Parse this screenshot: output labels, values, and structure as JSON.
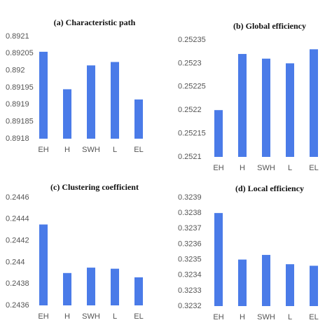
{
  "chart_data": [
    {
      "type": "bar",
      "title": "(a) Characteristic path",
      "categories": [
        "EH",
        "H",
        "SWH",
        "L",
        "EL"
      ],
      "values": [
        0.892055,
        0.891945,
        0.892015,
        0.892025,
        0.891915
      ],
      "color": "#4a7be8",
      "ylim": [
        0.8918,
        0.8921
      ],
      "yticks": [
        0.8918,
        0.89185,
        0.8919,
        0.89195,
        0.892,
        0.89205,
        0.8921
      ]
    },
    {
      "type": "bar",
      "title": "(b) Global efficiency",
      "categories": [
        "EH",
        "H",
        "SWH",
        "L",
        "EL"
      ],
      "values": [
        0.2522,
        0.25232,
        0.25231,
        0.2523,
        0.25233
      ],
      "color": "#4a7be8",
      "ylim": [
        0.2521,
        0.25235
      ],
      "yticks": [
        0.2521,
        0.25215,
        0.2522,
        0.25225,
        0.2523,
        0.25235
      ]
    },
    {
      "type": "bar",
      "title": "(c) Clustering coefficient",
      "categories": [
        "EH",
        "H",
        "SWH",
        "L",
        "EL"
      ],
      "values": [
        0.24435,
        0.2439,
        0.24395,
        0.24394,
        0.24386
      ],
      "color": "#4a7be8",
      "ylim": [
        0.2436,
        0.2446
      ],
      "yticks": [
        0.2436,
        0.2438,
        0.244,
        0.2442,
        0.2444,
        0.2446
      ]
    },
    {
      "type": "bar",
      "title": "(d) Local efficiency",
      "categories": [
        "EH",
        "H",
        "SWH",
        "L",
        "EL"
      ],
      "values": [
        0.3238,
        0.3235,
        0.32353,
        0.32347,
        0.32346
      ],
      "color": "#4a7be8",
      "ylim": [
        0.3232,
        0.3239
      ],
      "yticks": [
        0.3232,
        0.3233,
        0.3234,
        0.3235,
        0.3236,
        0.3237,
        0.3238,
        0.3239
      ]
    }
  ]
}
